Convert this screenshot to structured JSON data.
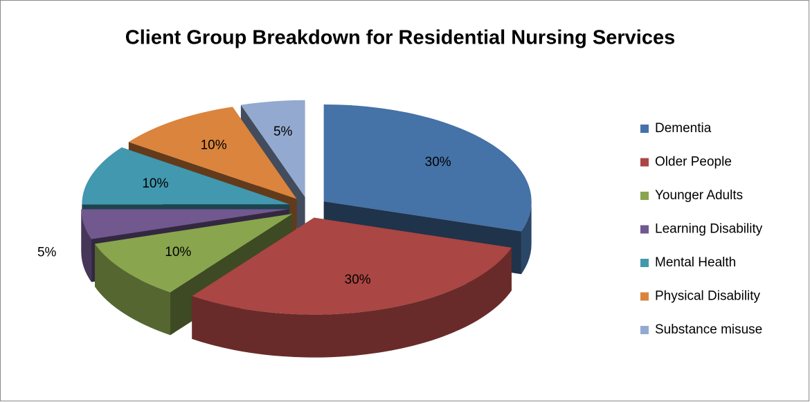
{
  "chart_data": {
    "type": "pie3d",
    "title": "Client Group Breakdown for Residential Nursing Services",
    "categories": [
      "Dementia",
      "Older People",
      "Younger Adults",
      "Learning Disability",
      "Mental Health",
      "Physical Disability",
      "Substance misuse"
    ],
    "values": [
      30,
      30,
      10,
      5,
      10,
      10,
      5
    ],
    "value_labels": [
      "30%",
      "30%",
      "10%",
      "5%",
      "10%",
      "10%",
      "5%"
    ],
    "colors": [
      "#4572a7",
      "#aa4643",
      "#89a54e",
      "#71588f",
      "#4198af",
      "#db843d",
      "#93a9cf"
    ],
    "legend": "right"
  }
}
